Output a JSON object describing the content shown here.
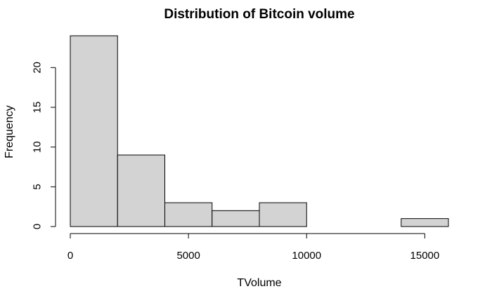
{
  "chart_data": {
    "type": "bar",
    "subtype": "histogram",
    "title": "Distribution of Bitcoin volume",
    "xlabel": "TVolume",
    "ylabel": "Frequency",
    "bins": [
      {
        "start": 0,
        "end": 2000,
        "count": 24
      },
      {
        "start": 2000,
        "end": 4000,
        "count": 9
      },
      {
        "start": 4000,
        "end": 6000,
        "count": 3
      },
      {
        "start": 6000,
        "end": 8000,
        "count": 2
      },
      {
        "start": 8000,
        "end": 10000,
        "count": 3
      },
      {
        "start": 10000,
        "end": 12000,
        "count": 0
      },
      {
        "start": 12000,
        "end": 14000,
        "count": 0
      },
      {
        "start": 14000,
        "end": 16000,
        "count": 1
      }
    ],
    "xlim": [
      0,
      16000
    ],
    "ylim": [
      0,
      24
    ],
    "x_ticks": [
      0,
      5000,
      10000,
      15000
    ],
    "x_tick_labels": [
      "0",
      "5000",
      "10000",
      "15000"
    ],
    "y_ticks": [
      0,
      5,
      10,
      15,
      20
    ],
    "y_tick_labels": [
      "0",
      "5",
      "10",
      "15",
      "20"
    ],
    "bar_fill": "#d3d3d3",
    "bar_stroke": "#000000",
    "grid": false,
    "legend": "none"
  }
}
